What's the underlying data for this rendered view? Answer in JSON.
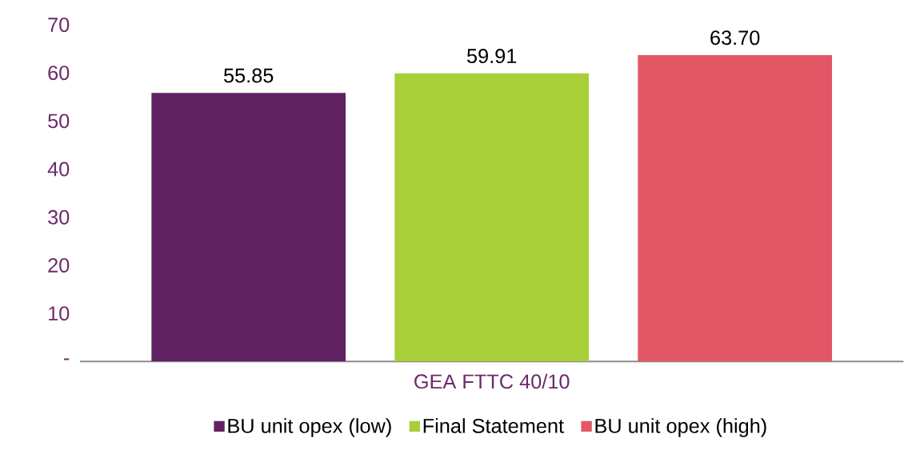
{
  "chart_data": {
    "type": "bar",
    "categories": [
      "GEA FTTC 40/10"
    ],
    "series": [
      {
        "name": "BU unit opex (low)",
        "color": "#612262",
        "values": [
          55.85
        ],
        "value_labels": [
          "55.85"
        ]
      },
      {
        "name": "Final Statement",
        "color": "#a8cf38",
        "values": [
          59.91
        ],
        "value_labels": [
          "59.91"
        ]
      },
      {
        "name": "BU unit opex (high)",
        "color": "#e35666",
        "values": [
          63.7
        ],
        "value_labels": [
          "63.70"
        ]
      }
    ],
    "ylim": [
      0,
      70
    ],
    "yticks": [
      {
        "value": 0,
        "label": "-"
      },
      10,
      20,
      30,
      40,
      50,
      60,
      70
    ],
    "legend": "bottom",
    "grid": false
  }
}
